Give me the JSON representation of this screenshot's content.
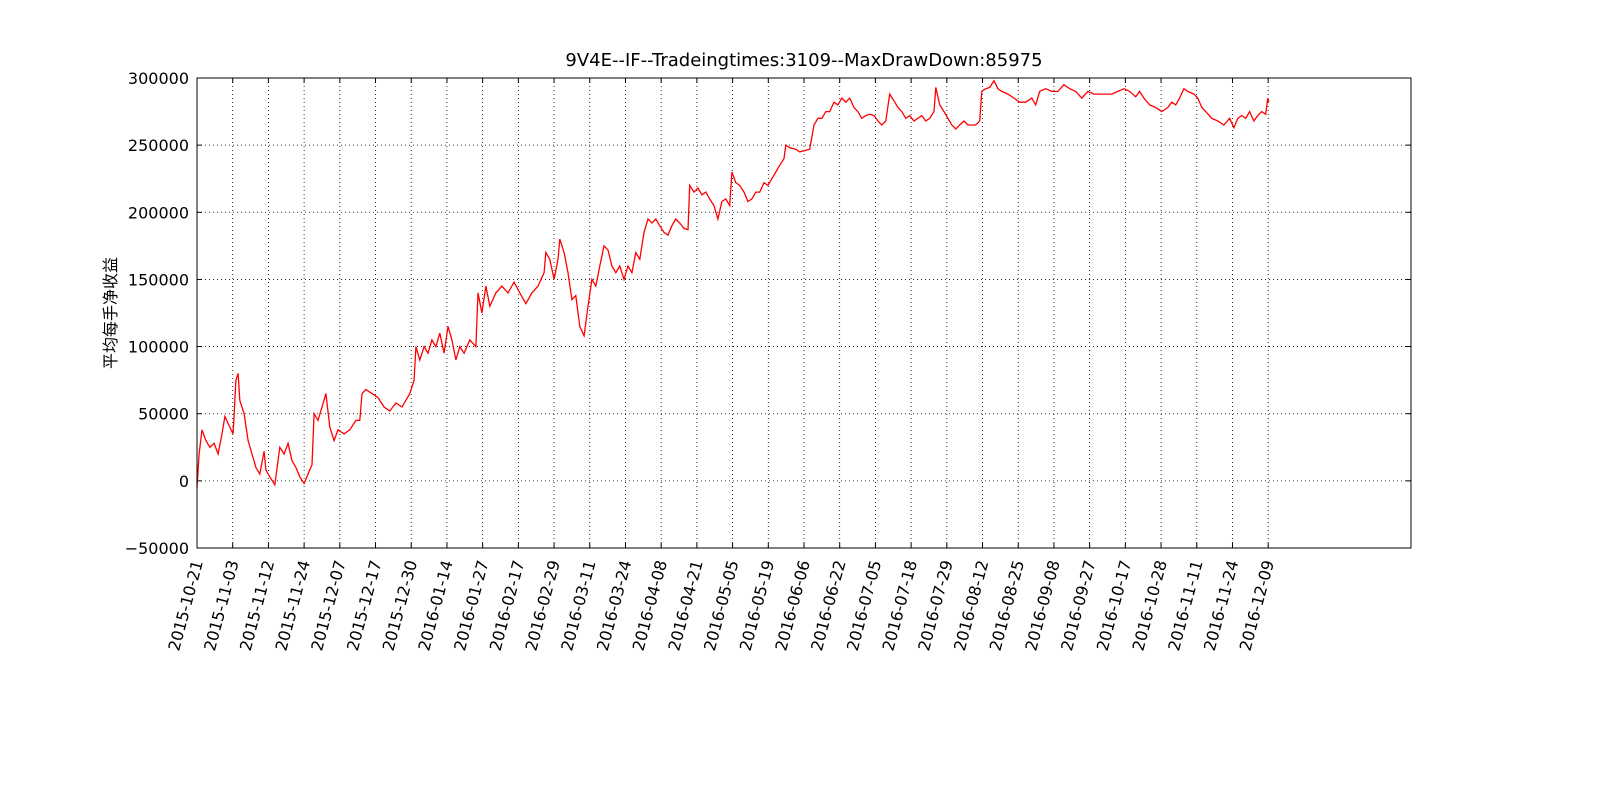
{
  "chart_data": {
    "type": "line",
    "title": "9V4E--IF--Tradeingtimes:3109--MaxDrawDown:85975",
    "y_label": "平均每手净收益",
    "color": "#ff0000",
    "grid": true,
    "xlim": [
      0,
      3400
    ],
    "ylim": [
      -50000,
      300000
    ],
    "yticks": [
      {
        "value": -50000,
        "label": "−50000"
      },
      0,
      50000,
      100000,
      150000,
      200000,
      250000,
      300000
    ],
    "xticks": [
      {
        "value": 0,
        "label": "2015-10-21"
      },
      {
        "value": 100,
        "label": "2015-11-03"
      },
      {
        "value": 200,
        "label": "2015-11-12"
      },
      {
        "value": 300,
        "label": "2015-11-24"
      },
      {
        "value": 400,
        "label": "2015-12-07"
      },
      {
        "value": 500,
        "label": "2015-12-17"
      },
      {
        "value": 600,
        "label": "2015-12-30"
      },
      {
        "value": 700,
        "label": "2016-01-14"
      },
      {
        "value": 800,
        "label": "2016-01-27"
      },
      {
        "value": 900,
        "label": "2016-02-17"
      },
      {
        "value": 1000,
        "label": "2016-02-29"
      },
      {
        "value": 1100,
        "label": "2016-03-11"
      },
      {
        "value": 1200,
        "label": "2016-03-24"
      },
      {
        "value": 1300,
        "label": "2016-04-08"
      },
      {
        "value": 1400,
        "label": "2016-04-21"
      },
      {
        "value": 1500,
        "label": "2016-05-05"
      },
      {
        "value": 1600,
        "label": "2016-05-19"
      },
      {
        "value": 1700,
        "label": "2016-06-06"
      },
      {
        "value": 1800,
        "label": "2016-06-22"
      },
      {
        "value": 1900,
        "label": "2016-07-05"
      },
      {
        "value": 2000,
        "label": "2016-07-18"
      },
      {
        "value": 2100,
        "label": "2016-07-29"
      },
      {
        "value": 2200,
        "label": "2016-08-12"
      },
      {
        "value": 2300,
        "label": "2016-08-25"
      },
      {
        "value": 2400,
        "label": "2016-09-08"
      },
      {
        "value": 2500,
        "label": "2016-09-27"
      },
      {
        "value": 2600,
        "label": "2016-10-17"
      },
      {
        "value": 2700,
        "label": "2016-10-28"
      },
      {
        "value": 2800,
        "label": "2016-11-11"
      },
      {
        "value": 2900,
        "label": "2016-11-24"
      },
      {
        "value": 3000,
        "label": "2016-12-09"
      }
    ],
    "x": [
      0,
      6,
      14,
      25,
      36,
      48,
      59,
      70,
      78,
      92,
      101,
      109,
      115,
      120,
      132,
      143,
      154,
      165,
      176,
      188,
      193,
      204,
      218,
      232,
      244,
      255,
      266,
      277,
      288,
      300,
      311,
      322,
      328,
      339,
      350,
      361,
      372,
      384,
      395,
      412,
      428,
      445,
      456,
      462,
      473,
      490,
      507,
      524,
      540,
      557,
      574,
      585,
      596,
      608,
      613,
      624,
      636,
      647,
      658,
      669,
      680,
      692,
      703,
      714,
      725,
      736,
      748,
      764,
      781,
      787,
      798,
      809,
      820,
      837,
      854,
      871,
      888,
      904,
      921,
      938,
      955,
      972,
      977,
      988,
      1000,
      1011,
      1016,
      1028,
      1039,
      1050,
      1061,
      1072,
      1084,
      1095,
      1106,
      1117,
      1128,
      1140,
      1151,
      1162,
      1173,
      1184,
      1196,
      1207,
      1218,
      1229,
      1240,
      1252,
      1263,
      1274,
      1285,
      1296,
      1308,
      1319,
      1330,
      1341,
      1352,
      1364,
      1375,
      1380,
      1392,
      1403,
      1414,
      1425,
      1436,
      1448,
      1459,
      1470,
      1481,
      1492,
      1498,
      1509,
      1520,
      1532,
      1543,
      1554,
      1565,
      1576,
      1588,
      1599,
      1610,
      1621,
      1632,
      1644,
      1649,
      1660,
      1677,
      1688,
      1716,
      1728,
      1739,
      1750,
      1761,
      1772,
      1784,
      1795,
      1806,
      1817,
      1828,
      1840,
      1851,
      1862,
      1873,
      1884,
      1896,
      1907,
      1918,
      1929,
      1940,
      1952,
      1963,
      1974,
      1985,
      1996,
      2008,
      2019,
      2030,
      2041,
      2052,
      2064,
      2069,
      2080,
      2092,
      2103,
      2114,
      2125,
      2136,
      2148,
      2159,
      2170,
      2181,
      2192,
      2198,
      2209,
      2220,
      2232,
      2243,
      2254,
      2271,
      2288,
      2304,
      2321,
      2338,
      2349,
      2360,
      2377,
      2394,
      2411,
      2428,
      2444,
      2461,
      2478,
      2495,
      2512,
      2528,
      2545,
      2562,
      2579,
      2596,
      2612,
      2629,
      2640,
      2652,
      2668,
      2685,
      2702,
      2719,
      2730,
      2741,
      2752,
      2764,
      2775,
      2792,
      2803,
      2814,
      2825,
      2842,
      2859,
      2876,
      2892,
      2904,
      2915,
      2926,
      2937,
      2948,
      2960,
      2971,
      2982,
      2993,
      2999,
      3002
    ],
    "values": [
      -5000,
      20000,
      38000,
      30000,
      25000,
      28000,
      20000,
      35000,
      48000,
      40000,
      35000,
      75000,
      80000,
      60000,
      50000,
      30000,
      20000,
      10000,
      5000,
      22000,
      8000,
      3000,
      -3000,
      25000,
      20000,
      28000,
      15000,
      10000,
      3000,
      -2000,
      5000,
      12000,
      50000,
      45000,
      55000,
      65000,
      40000,
      30000,
      38000,
      35000,
      38000,
      45000,
      45000,
      65000,
      68000,
      65000,
      62000,
      55000,
      52000,
      58000,
      55000,
      60000,
      65000,
      75000,
      100000,
      90000,
      100000,
      95000,
      105000,
      100000,
      110000,
      95000,
      115000,
      105000,
      90000,
      100000,
      95000,
      105000,
      100000,
      140000,
      125000,
      145000,
      130000,
      140000,
      145000,
      140000,
      148000,
      140000,
      132000,
      140000,
      145000,
      155000,
      170000,
      165000,
      150000,
      165000,
      180000,
      170000,
      155000,
      135000,
      138000,
      115000,
      108000,
      130000,
      150000,
      145000,
      160000,
      175000,
      172000,
      160000,
      155000,
      160000,
      150000,
      160000,
      155000,
      170000,
      165000,
      185000,
      195000,
      192000,
      195000,
      190000,
      185000,
      183000,
      190000,
      195000,
      192000,
      188000,
      187000,
      220000,
      215000,
      218000,
      213000,
      215000,
      210000,
      205000,
      195000,
      208000,
      210000,
      205000,
      230000,
      222000,
      220000,
      215000,
      208000,
      210000,
      215000,
      215000,
      222000,
      220000,
      225000,
      230000,
      235000,
      240000,
      250000,
      248000,
      247000,
      245000,
      247000,
      265000,
      270000,
      270000,
      275000,
      275000,
      282000,
      280000,
      285000,
      282000,
      285000,
      278000,
      275000,
      270000,
      272000,
      273000,
      272000,
      268000,
      265000,
      268000,
      288000,
      283000,
      278000,
      275000,
      270000,
      272000,
      268000,
      270000,
      272000,
      268000,
      270000,
      275000,
      293000,
      280000,
      275000,
      270000,
      265000,
      262000,
      265000,
      268000,
      265000,
      265000,
      265000,
      268000,
      290000,
      292000,
      293000,
      298000,
      292000,
      290000,
      288000,
      285000,
      282000,
      282000,
      285000,
      280000,
      290000,
      292000,
      290000,
      290000,
      295000,
      292000,
      290000,
      285000,
      290000,
      288000,
      288000,
      288000,
      288000,
      290000,
      292000,
      290000,
      286000,
      290000,
      285000,
      280000,
      278000,
      275000,
      278000,
      282000,
      280000,
      285000,
      292000,
      290000,
      288000,
      285000,
      278000,
      275000,
      270000,
      268000,
      265000,
      270000,
      263000,
      270000,
      272000,
      270000,
      275000,
      268000,
      272000,
      275000,
      273000,
      285000,
      282000
    ]
  }
}
